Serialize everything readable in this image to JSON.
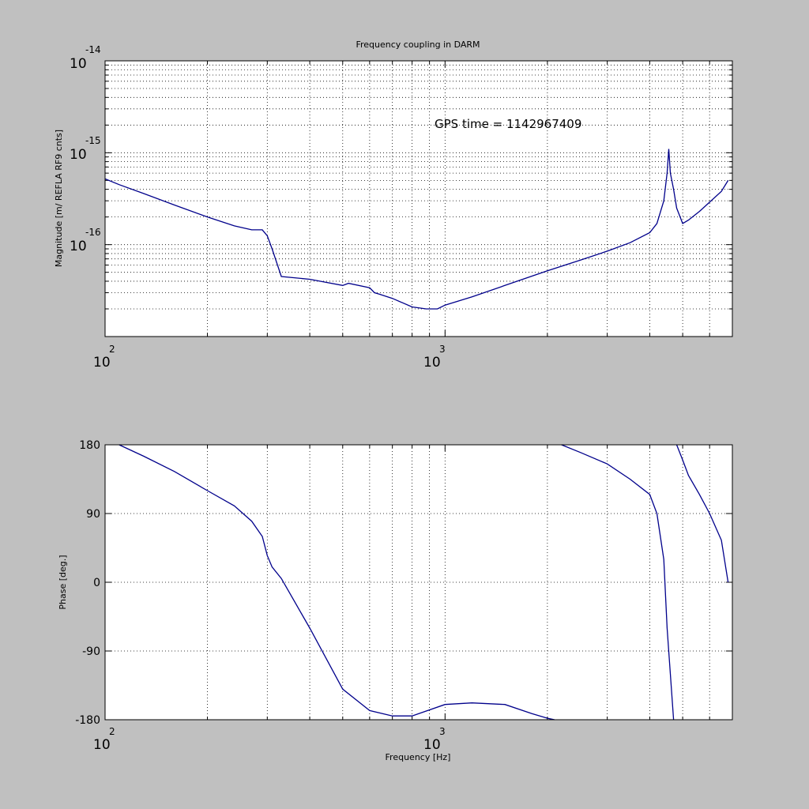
{
  "chart_data": [
    {
      "type": "line",
      "title": "Frequency coupling in DARM",
      "xlabel": "",
      "ylabel": "Magnitude [m/ REFLA RF9 cnts]",
      "xscale": "log",
      "yscale": "log",
      "xlim": [
        100,
        7000
      ],
      "ylim": [
        1e-17,
        1e-14
      ],
      "grid": true,
      "x_ticks": [
        {
          "base": "10",
          "exp": "2"
        },
        {
          "base": "10",
          "exp": "3"
        }
      ],
      "y_ticks": [
        {
          "base": "10",
          "exp": "-14"
        },
        {
          "base": "10",
          "exp": "-15"
        },
        {
          "base": "10",
          "exp": "-16"
        }
      ],
      "annotation": "GPS time = 1142967409",
      "color": "#00008b",
      "series": [
        {
          "x": [
            100,
            110,
            130,
            160,
            200,
            240,
            270,
            290,
            300,
            310,
            330,
            400,
            500,
            520,
            600,
            620,
            640,
            700,
            800,
            880,
            950,
            1000,
            1200,
            1500,
            2000,
            2500,
            3000,
            3500,
            4000,
            4200,
            4400,
            4500,
            4550,
            4600,
            4700,
            4800,
            5000,
            5200,
            5600,
            6000,
            6500,
            6800
          ],
          "y": [
            5.2e-16,
            4.5e-16,
            3.6e-16,
            2.7e-16,
            2e-16,
            1.6e-16,
            1.45e-16,
            1.45e-16,
            1.25e-16,
            9e-17,
            4.5e-17,
            4.2e-17,
            3.6e-17,
            3.8e-17,
            3.4e-17,
            3e-17,
            2.9e-17,
            2.6e-17,
            2.1e-17,
            2e-17,
            2e-17,
            2.2e-17,
            2.7e-17,
            3.6e-17,
            5.2e-17,
            6.8e-17,
            8.5e-17,
            1.05e-16,
            1.35e-16,
            1.7e-16,
            3e-16,
            6e-16,
            1.1e-15,
            6e-16,
            4e-16,
            2.5e-16,
            1.7e-16,
            1.85e-16,
            2.3e-16,
            2.9e-16,
            3.8e-16,
            5e-16
          ]
        }
      ]
    },
    {
      "type": "line",
      "title": "",
      "xlabel": "Frequency [Hz]",
      "ylabel": "Phase [deg.]",
      "xscale": "log",
      "xlim": [
        100,
        7000
      ],
      "ylim": [
        -180,
        180
      ],
      "grid": true,
      "x_ticks": [
        {
          "base": "10",
          "exp": "2"
        },
        {
          "base": "10",
          "exp": "3"
        }
      ],
      "y_ticks": [
        "180",
        "90",
        "0",
        "-90",
        "-180"
      ],
      "color": "#00008b",
      "series": [
        {
          "x": [
            110,
            130,
            160,
            200,
            240,
            270,
            290,
            300,
            310,
            330,
            400,
            500,
            600,
            700,
            800,
            1000,
            1200,
            1500,
            1800,
            2000,
            2100,
            2200,
            2500,
            3000,
            3500,
            4000,
            4200,
            4400,
            4500,
            4600,
            4700,
            4800,
            5000,
            5200,
            5600,
            6000,
            6500,
            6800
          ],
          "y": [
            180,
            165,
            145,
            120,
            100,
            80,
            60,
            35,
            20,
            5,
            -60,
            -140,
            -168,
            -175,
            -175,
            -160,
            -158,
            -160,
            -172,
            -178,
            -180,
            180,
            170,
            155,
            135,
            115,
            90,
            30,
            -60,
            -120,
            -180,
            180,
            160,
            140,
            115,
            90,
            55,
            0
          ]
        }
      ]
    }
  ]
}
